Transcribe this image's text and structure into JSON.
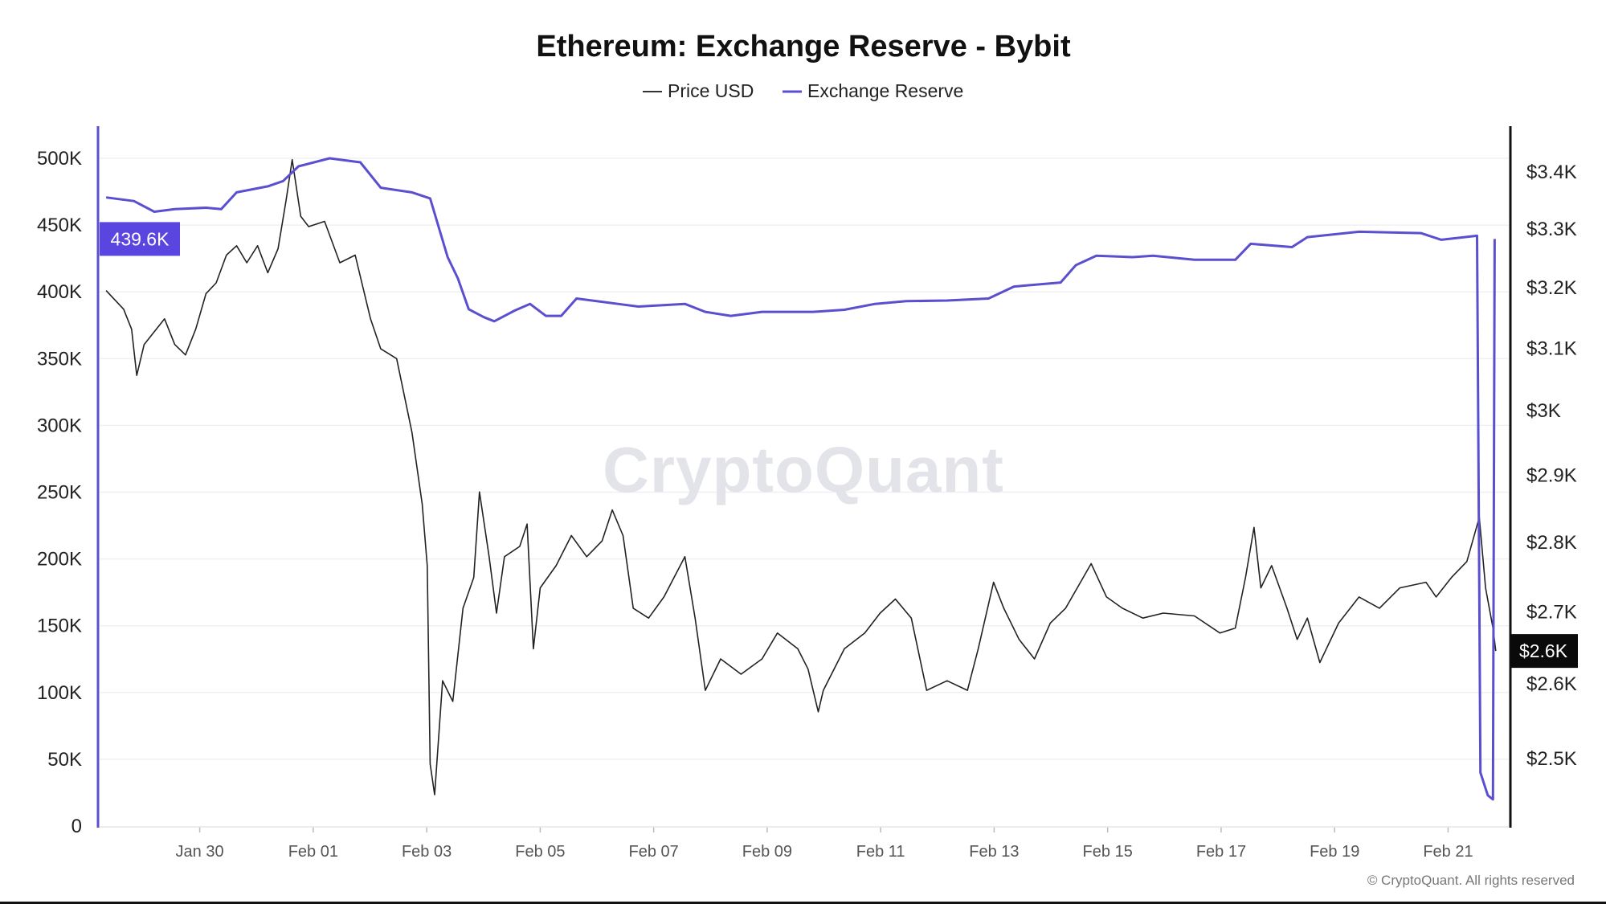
{
  "chart_data": {
    "type": "line",
    "title": "Ethereum: Exchange Reserve - Bybit",
    "x_unit": "days since Jan 28",
    "x_ticks": [
      {
        "day": 2,
        "label": "Jan 30"
      },
      {
        "day": 4,
        "label": "Feb 01"
      },
      {
        "day": 6,
        "label": "Feb 03"
      },
      {
        "day": 8,
        "label": "Feb 05"
      },
      {
        "day": 10,
        "label": "Feb 07"
      },
      {
        "day": 12,
        "label": "Feb 09"
      },
      {
        "day": 14,
        "label": "Feb 11"
      },
      {
        "day": 16,
        "label": "Feb 13"
      },
      {
        "day": 18,
        "label": "Feb 15"
      },
      {
        "day": 20,
        "label": "Feb 17"
      },
      {
        "day": 22,
        "label": "Feb 19"
      },
      {
        "day": 24,
        "label": "Feb 21"
      }
    ],
    "xlim": [
      0.0,
      24.85
    ],
    "left_axis": {
      "ylim": [
        0,
        500000
      ],
      "scale": "linear",
      "ticks": [
        {
          "value": 0,
          "label": "0"
        },
        {
          "value": 50000,
          "label": "50K"
        },
        {
          "value": 100000,
          "label": "100K"
        },
        {
          "value": 150000,
          "label": "150K"
        },
        {
          "value": 200000,
          "label": "200K"
        },
        {
          "value": 250000,
          "label": "250K"
        },
        {
          "value": 300000,
          "label": "300K"
        },
        {
          "value": 350000,
          "label": "350K"
        },
        {
          "value": 400000,
          "label": "400K"
        },
        {
          "value": 450000,
          "label": "450K"
        },
        {
          "value": 500000,
          "label": "500K"
        }
      ],
      "current_label": "439.6K",
      "current_value": 439600
    },
    "right_axis": {
      "scale": "log",
      "ylim": [
        2450,
        3400
      ],
      "ticks": [
        {
          "value": 3400,
          "label": "$3.4K"
        },
        {
          "value": 3300,
          "label": "$3.3K"
        },
        {
          "value": 3200,
          "label": "$3.2K"
        },
        {
          "value": 3100,
          "label": "$3.1K"
        },
        {
          "value": 3000,
          "label": "$3K"
        },
        {
          "value": 2900,
          "label": "$2.9K"
        },
        {
          "value": 2800,
          "label": "$2.8K"
        },
        {
          "value": 2700,
          "label": "$2.7K"
        },
        {
          "value": 2600,
          "label": "$2.6K"
        },
        {
          "value": 2500,
          "label": "$2.5K"
        }
      ],
      "current_label": "$2.6K",
      "current_value": 2645
    },
    "legend": [
      {
        "name": "Price USD",
        "color": "#333333"
      },
      {
        "name": "Exchange Reserve",
        "color": "#5a4fcf"
      }
    ],
    "series": [
      {
        "name": "Price USD",
        "axis": "right",
        "color": "#222222",
        "points": [
          [
            0.35,
            3195
          ],
          [
            0.48,
            3182
          ],
          [
            0.66,
            3164
          ],
          [
            0.8,
            3131
          ],
          [
            0.89,
            3056
          ],
          [
            1.02,
            3106
          ],
          [
            1.2,
            3127
          ],
          [
            1.38,
            3148
          ],
          [
            1.56,
            3106
          ],
          [
            1.75,
            3089
          ],
          [
            1.93,
            3131
          ],
          [
            2.11,
            3190
          ],
          [
            2.29,
            3208
          ],
          [
            2.47,
            3255
          ],
          [
            2.65,
            3271
          ],
          [
            2.83,
            3242
          ],
          [
            3.02,
            3271
          ],
          [
            3.2,
            3225
          ],
          [
            3.38,
            3266
          ],
          [
            3.52,
            3349
          ],
          [
            3.63,
            3422
          ],
          [
            3.78,
            3322
          ],
          [
            3.92,
            3304
          ],
          [
            4.2,
            3313
          ],
          [
            4.47,
            3242
          ],
          [
            4.74,
            3255
          ],
          [
            5.01,
            3148
          ],
          [
            5.19,
            3099
          ],
          [
            5.47,
            3083
          ],
          [
            5.74,
            2966
          ],
          [
            5.92,
            2857
          ],
          [
            6.01,
            2766
          ],
          [
            6.06,
            2493
          ],
          [
            6.14,
            2453
          ],
          [
            6.28,
            2604
          ],
          [
            6.46,
            2576
          ],
          [
            6.64,
            2705
          ],
          [
            6.83,
            2749
          ],
          [
            6.93,
            2875
          ],
          [
            7.1,
            2779
          ],
          [
            7.23,
            2698
          ],
          [
            7.37,
            2779
          ],
          [
            7.64,
            2794
          ],
          [
            7.77,
            2827
          ],
          [
            7.88,
            2648
          ],
          [
            8.0,
            2734
          ],
          [
            8.28,
            2766
          ],
          [
            8.55,
            2810
          ],
          [
            8.82,
            2779
          ],
          [
            9.09,
            2802
          ],
          [
            9.27,
            2848
          ],
          [
            9.46,
            2810
          ],
          [
            9.64,
            2705
          ],
          [
            9.91,
            2691
          ],
          [
            10.18,
            2721
          ],
          [
            10.55,
            2779
          ],
          [
            10.73,
            2691
          ],
          [
            10.91,
            2591
          ],
          [
            11.18,
            2634
          ],
          [
            11.54,
            2613
          ],
          [
            11.91,
            2634
          ],
          [
            12.18,
            2670
          ],
          [
            12.54,
            2648
          ],
          [
            12.72,
            2620
          ],
          [
            12.9,
            2562
          ],
          [
            12.99,
            2591
          ],
          [
            13.36,
            2648
          ],
          [
            13.72,
            2670
          ],
          [
            13.99,
            2698
          ],
          [
            14.26,
            2718
          ],
          [
            14.54,
            2691
          ],
          [
            14.81,
            2591
          ],
          [
            15.17,
            2604
          ],
          [
            15.53,
            2591
          ],
          [
            15.72,
            2648
          ],
          [
            15.99,
            2742
          ],
          [
            16.17,
            2705
          ],
          [
            16.44,
            2661
          ],
          [
            16.71,
            2634
          ],
          [
            16.99,
            2684
          ],
          [
            17.26,
            2705
          ],
          [
            17.71,
            2769
          ],
          [
            17.98,
            2721
          ],
          [
            18.26,
            2705
          ],
          [
            18.62,
            2691
          ],
          [
            18.98,
            2698
          ],
          [
            19.53,
            2694
          ],
          [
            19.98,
            2670
          ],
          [
            20.25,
            2677
          ],
          [
            20.43,
            2749
          ],
          [
            20.58,
            2822
          ],
          [
            20.7,
            2734
          ],
          [
            20.89,
            2766
          ],
          [
            21.16,
            2705
          ],
          [
            21.34,
            2661
          ],
          [
            21.52,
            2691
          ],
          [
            21.74,
            2629
          ],
          [
            22.07,
            2684
          ],
          [
            22.43,
            2721
          ],
          [
            22.79,
            2705
          ],
          [
            23.15,
            2734
          ],
          [
            23.61,
            2742
          ],
          [
            23.79,
            2721
          ],
          [
            24.06,
            2749
          ],
          [
            24.33,
            2772
          ],
          [
            24.55,
            2837
          ],
          [
            24.66,
            2734
          ],
          [
            24.79,
            2677
          ],
          [
            24.84,
            2645
          ]
        ]
      },
      {
        "name": "Exchange Reserve",
        "axis": "left",
        "color": "#5a4fcf",
        "points": [
          [
            0.35,
            470700
          ],
          [
            0.84,
            468000
          ],
          [
            1.2,
            460000
          ],
          [
            1.56,
            462000
          ],
          [
            2.11,
            463000
          ],
          [
            2.38,
            462000
          ],
          [
            2.65,
            474500
          ],
          [
            3.2,
            479000
          ],
          [
            3.47,
            483000
          ],
          [
            3.74,
            494000
          ],
          [
            4.29,
            500000
          ],
          [
            4.83,
            497000
          ],
          [
            5.19,
            478000
          ],
          [
            5.74,
            474500
          ],
          [
            6.06,
            470000
          ],
          [
            6.37,
            426000
          ],
          [
            6.55,
            410000
          ],
          [
            6.74,
            387000
          ],
          [
            7.01,
            381000
          ],
          [
            7.19,
            378000
          ],
          [
            7.55,
            386000
          ],
          [
            7.82,
            391000
          ],
          [
            8.1,
            382000
          ],
          [
            8.37,
            382000
          ],
          [
            8.64,
            395000
          ],
          [
            9.37,
            391000
          ],
          [
            9.73,
            389000
          ],
          [
            10.55,
            391000
          ],
          [
            10.91,
            385000
          ],
          [
            11.36,
            382000
          ],
          [
            11.91,
            385000
          ],
          [
            12.81,
            385000
          ],
          [
            13.36,
            386600
          ],
          [
            13.9,
            391000
          ],
          [
            14.45,
            393000
          ],
          [
            15.17,
            393500
          ],
          [
            15.9,
            395000
          ],
          [
            16.35,
            404000
          ],
          [
            17.17,
            407000
          ],
          [
            17.44,
            420000
          ],
          [
            17.8,
            427000
          ],
          [
            18.44,
            426000
          ],
          [
            18.8,
            427000
          ],
          [
            19.53,
            424000
          ],
          [
            20.25,
            424000
          ],
          [
            20.52,
            436000
          ],
          [
            21.25,
            433500
          ],
          [
            21.52,
            441000
          ],
          [
            22.43,
            445000
          ],
          [
            23.52,
            444000
          ],
          [
            23.88,
            439000
          ],
          [
            24.51,
            442000
          ],
          [
            24.57,
            40000
          ],
          [
            24.7,
            23000
          ],
          [
            24.79,
            20000
          ],
          [
            24.82,
            439600
          ]
        ]
      }
    ]
  },
  "watermark": "CryptoQuant",
  "copyright": "© CryptoQuant. All rights reserved"
}
